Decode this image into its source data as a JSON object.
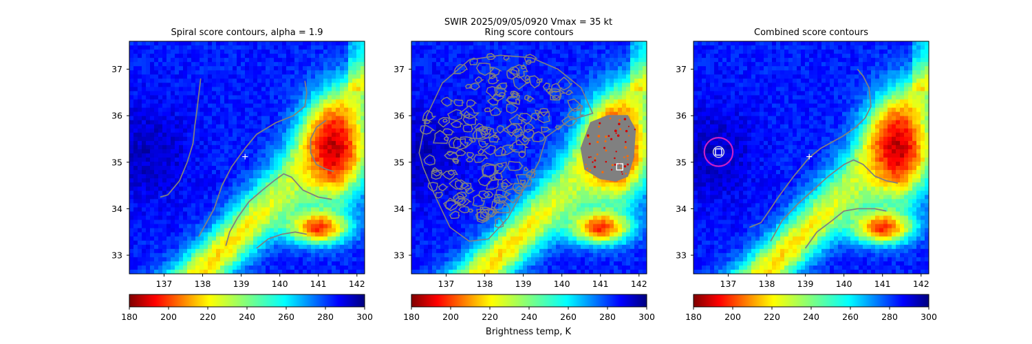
{
  "figure": {
    "suptitle_line1": "SWIR  2025/09/05/0920    Vmax = 35 kt",
    "colorbar_label": "Brightness temp, K"
  },
  "colormap": "jet reversed",
  "chart_data": [
    {
      "type": "heatmap",
      "title": "Spiral score contours, alpha =  1.9",
      "xlim": [
        136.1,
        142.2
      ],
      "ylim": [
        32.6,
        37.6
      ],
      "xticks": [
        137,
        138,
        139,
        140,
        141,
        142
      ],
      "yticks": [
        33,
        34,
        35,
        36,
        37
      ],
      "colorbar": {
        "min": 180,
        "max": 300,
        "ticks": [
          180,
          200,
          220,
          240,
          260,
          280,
          300
        ]
      },
      "center_marker": {
        "lon": 139.1,
        "lat": 35.12
      },
      "contour_color": "#808080",
      "contours": [
        [
          [
            136.9,
            34.25
          ],
          [
            137.1,
            34.3
          ],
          [
            137.4,
            34.6
          ],
          [
            137.6,
            35.0
          ],
          [
            137.75,
            35.4
          ],
          [
            137.8,
            35.8
          ],
          [
            137.85,
            36.1
          ],
          [
            137.9,
            36.45
          ],
          [
            137.95,
            36.8
          ]
        ],
        [
          [
            137.9,
            33.4
          ],
          [
            138.1,
            33.7
          ],
          [
            138.3,
            34.0
          ],
          [
            138.5,
            34.5
          ],
          [
            138.75,
            34.9
          ],
          [
            139.1,
            35.3
          ],
          [
            139.4,
            35.6
          ],
          [
            139.9,
            35.85
          ],
          [
            140.35,
            36.0
          ],
          [
            140.65,
            36.2
          ],
          [
            140.7,
            36.5
          ],
          [
            140.65,
            36.75
          ]
        ],
        [
          [
            138.6,
            33.2
          ],
          [
            138.7,
            33.5
          ],
          [
            138.9,
            33.8
          ],
          [
            139.2,
            34.15
          ],
          [
            139.55,
            34.4
          ],
          [
            139.85,
            34.6
          ],
          [
            140.1,
            34.75
          ],
          [
            140.3,
            34.68
          ],
          [
            140.6,
            34.4
          ],
          [
            141.0,
            34.25
          ],
          [
            141.35,
            34.2
          ]
        ],
        [
          [
            141.2,
            35.9
          ],
          [
            140.95,
            35.75
          ],
          [
            140.8,
            35.5
          ],
          [
            140.8,
            35.2
          ],
          [
            140.95,
            34.95
          ],
          [
            141.2,
            34.85
          ],
          [
            141.4,
            34.8
          ]
        ],
        [
          [
            139.4,
            33.15
          ],
          [
            139.7,
            33.35
          ],
          [
            140.05,
            33.45
          ],
          [
            140.4,
            33.5
          ],
          [
            140.7,
            33.45
          ]
        ]
      ]
    },
    {
      "type": "heatmap",
      "title": "Ring score contours",
      "xlim": [
        136.1,
        142.2
      ],
      "ylim": [
        32.6,
        37.6
      ],
      "xticks": [
        137,
        138,
        139,
        140,
        141,
        142
      ],
      "yticks": [
        33,
        34,
        35,
        36,
        37
      ],
      "colorbar": {
        "min": 180,
        "max": 300,
        "ticks": [
          180,
          200,
          220,
          240,
          260,
          280,
          300
        ]
      },
      "square_marker": {
        "lon": 141.5,
        "lat": 34.9
      },
      "contour_color": "#808080",
      "noisy_region": {
        "outline": [
          [
            136.3,
            35.2
          ],
          [
            136.5,
            36.0
          ],
          [
            136.9,
            36.7
          ],
          [
            137.6,
            37.2
          ],
          [
            138.4,
            37.3
          ],
          [
            139.2,
            37.25
          ],
          [
            139.9,
            37.0
          ],
          [
            140.5,
            36.6
          ],
          [
            140.8,
            36.05
          ],
          [
            140.2,
            35.9
          ],
          [
            139.6,
            35.55
          ],
          [
            139.4,
            35.0
          ],
          [
            139.0,
            34.4
          ],
          [
            138.6,
            33.8
          ],
          [
            138.1,
            33.35
          ],
          [
            137.6,
            33.3
          ],
          [
            137.1,
            33.6
          ],
          [
            136.7,
            34.3
          ],
          [
            136.4,
            34.9
          ]
        ]
      },
      "filled_region": {
        "outline": [
          [
            140.5,
            35.3
          ],
          [
            140.75,
            35.85
          ],
          [
            141.2,
            36.0
          ],
          [
            141.7,
            36.0
          ],
          [
            141.9,
            35.7
          ],
          [
            141.85,
            35.1
          ],
          [
            141.7,
            34.7
          ],
          [
            141.4,
            34.6
          ],
          [
            141.0,
            34.65
          ],
          [
            140.6,
            34.85
          ]
        ]
      }
    },
    {
      "type": "heatmap",
      "title": "Combined score contours",
      "xlim": [
        136.1,
        142.2
      ],
      "ylim": [
        32.6,
        37.6
      ],
      "xticks": [
        137,
        138,
        139,
        140,
        141,
        142
      ],
      "yticks": [
        33,
        34,
        35,
        36,
        37
      ],
      "colorbar": {
        "min": 180,
        "max": 300,
        "ticks": [
          180,
          200,
          220,
          240,
          260,
          280,
          300
        ]
      },
      "center_marker": {
        "lon": 139.1,
        "lat": 35.12
      },
      "square_marker": {
        "lon": 136.75,
        "lat": 35.22
      },
      "circle": {
        "lon": 136.75,
        "lat": 35.22,
        "radius_deg": 0.37,
        "color": "#c81fc8"
      },
      "small_ring": {
        "lon": 136.75,
        "lat": 35.22,
        "radius_deg": 0.14,
        "color": "#dddddd"
      },
      "contour_color": "#808080",
      "contours": [
        [
          [
            140.35,
            37.0
          ],
          [
            140.5,
            36.85
          ],
          [
            140.65,
            36.6
          ],
          [
            140.7,
            36.2
          ],
          [
            140.55,
            35.95
          ],
          [
            140.3,
            35.75
          ],
          [
            139.95,
            35.55
          ],
          [
            139.4,
            35.3
          ],
          [
            139.1,
            35.1
          ],
          [
            138.7,
            34.7
          ],
          [
            138.3,
            34.25
          ],
          [
            138.1,
            34.0
          ],
          [
            137.85,
            33.7
          ],
          [
            137.55,
            33.6
          ]
        ],
        [
          [
            138.1,
            33.3
          ],
          [
            138.4,
            33.75
          ],
          [
            138.8,
            34.1
          ],
          [
            139.2,
            34.4
          ],
          [
            139.6,
            34.7
          ],
          [
            140.0,
            34.95
          ],
          [
            140.25,
            35.05
          ],
          [
            140.5,
            34.95
          ],
          [
            140.8,
            34.7
          ],
          [
            141.1,
            34.6
          ],
          [
            141.4,
            34.55
          ]
        ],
        [
          [
            139.0,
            33.15
          ],
          [
            139.3,
            33.5
          ],
          [
            139.7,
            33.75
          ],
          [
            140.0,
            33.95
          ],
          [
            140.35,
            34.0
          ],
          [
            140.8,
            34.0
          ],
          [
            141.1,
            33.95
          ]
        ]
      ]
    }
  ],
  "scene_model": {
    "description_note_removed": true,
    "cold_cells": [
      {
        "lon": 141.4,
        "lat": 35.3,
        "rx": 1.0,
        "ry": 1.35,
        "t": 188
      },
      {
        "lon": 141.0,
        "lat": 33.6,
        "rx": 1.0,
        "ry": 0.45,
        "t": 200
      }
    ]
  }
}
